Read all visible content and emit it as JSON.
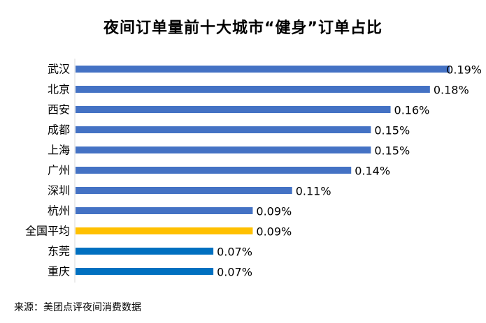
{
  "chart_data": {
    "type": "bar",
    "orientation": "horizontal",
    "title": "夜间订单量前十大城市“健身”订单占比",
    "categories": [
      "武汉",
      "北京",
      "西安",
      "成都",
      "上海",
      "广州",
      "深圳",
      "杭州",
      "全国平均",
      "东莞",
      "重庆"
    ],
    "values": [
      0.19,
      0.18,
      0.16,
      0.15,
      0.15,
      0.14,
      0.11,
      0.09,
      0.09,
      0.07,
      0.07
    ],
    "value_labels": [
      "0.19%",
      "0.18%",
      "0.16%",
      "0.15%",
      "0.15%",
      "0.14%",
      "0.11%",
      "0.09%",
      "0.09%",
      "0.07%",
      "0.07%"
    ],
    "bar_colors": [
      "#4472C4",
      "#4472C4",
      "#4472C4",
      "#4472C4",
      "#4472C4",
      "#4472C4",
      "#4472C4",
      "#4472C4",
      "#FFC000",
      "#0070C0",
      "#0070C0"
    ],
    "unit": "%",
    "xlim": [
      0,
      0.19
    ],
    "grid": false,
    "legend": "none",
    "source": "来源：美团点评夜间消费数据"
  }
}
